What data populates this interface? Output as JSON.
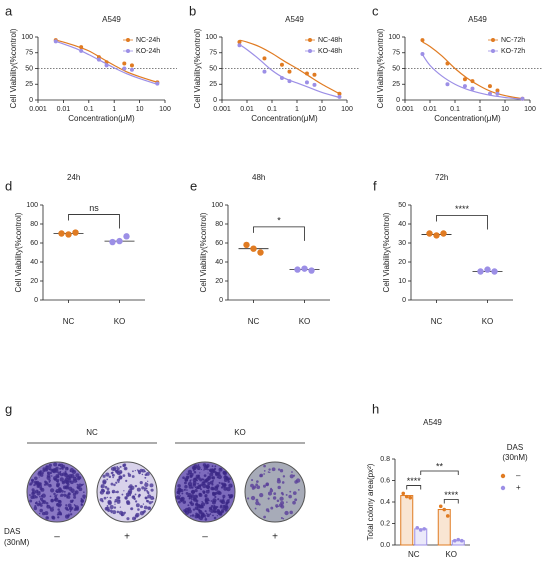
{
  "chart_data": [
    {
      "type": "scatter",
      "label": "a",
      "title": "A549",
      "xlabel": "Concentration(μM)",
      "ylabel": "Cell Viability(%control)",
      "xscale": "log",
      "xlim": [
        0.001,
        100
      ],
      "xticks": [
        0.001,
        0.01,
        0.1,
        1,
        10,
        100
      ],
      "ylim": [
        0,
        100
      ],
      "yticks": [
        0,
        25,
        50,
        75,
        100
      ],
      "reference_line": 50,
      "legend": "upper right",
      "x": [
        0.005,
        0.05,
        0.25,
        0.5,
        2.5,
        5,
        50
      ],
      "fit_x": [
        0.005,
        0.01,
        0.03,
        0.1,
        0.3,
        1,
        3,
        10,
        50
      ],
      "series": [
        {
          "name": "NC-24h",
          "color": "#e07b22",
          "values": [
            95,
            84,
            68,
            60,
            58,
            55,
            28
          ],
          "fit": [
            95,
            92,
            86,
            78,
            67,
            55,
            45,
            37,
            28
          ]
        },
        {
          "name": "KO-24h",
          "color": "#9c8fe6",
          "values": [
            93,
            78,
            64,
            55,
            50,
            48,
            26
          ],
          "fit": [
            93,
            89,
            82,
            72,
            62,
            51,
            42,
            34,
            25
          ]
        }
      ]
    },
    {
      "type": "scatter",
      "label": "b",
      "title": "A549",
      "xlabel": "Concentration(μM)",
      "ylabel": "Cell Viability(%control)",
      "xscale": "log",
      "xlim": [
        0.001,
        100
      ],
      "xticks": [
        0.001,
        0.01,
        0.1,
        1,
        10,
        100
      ],
      "ylim": [
        0,
        100
      ],
      "yticks": [
        0,
        25,
        50,
        75,
        100
      ],
      "reference_line": 50,
      "legend": "upper right",
      "x": [
        0.005,
        0.05,
        0.25,
        0.5,
        2.5,
        5,
        50
      ],
      "fit_x": [
        0.005,
        0.01,
        0.03,
        0.1,
        0.3,
        1,
        3,
        10,
        50
      ],
      "series": [
        {
          "name": "NC-48h",
          "color": "#e07b22",
          "values": [
            92,
            66,
            56,
            45,
            42,
            40,
            10
          ],
          "fit": [
            95,
            92,
            85,
            74,
            62,
            50,
            38,
            25,
            10
          ]
        },
        {
          "name": "KO-48h",
          "color": "#9c8fe6",
          "values": [
            87,
            45,
            35,
            30,
            28,
            24,
            5
          ],
          "fit": [
            88,
            80,
            65,
            47,
            35,
            27,
            20,
            12,
            4
          ]
        }
      ]
    },
    {
      "type": "scatter",
      "label": "c",
      "title": "A549",
      "xlabel": "Concentration(μM)",
      "ylabel": "Cell Viability(%control)",
      "xscale": "log",
      "xlim": [
        0.001,
        100
      ],
      "xticks": [
        0.001,
        0.01,
        0.1,
        1,
        10,
        100
      ],
      "ylim": [
        0,
        100
      ],
      "yticks": [
        0,
        25,
        50,
        75,
        100
      ],
      "reference_line": 50,
      "legend": "upper right",
      "x": [
        0.005,
        0.05,
        0.25,
        0.5,
        2.5,
        5,
        50
      ],
      "fit_x": [
        0.005,
        0.01,
        0.03,
        0.1,
        0.3,
        1,
        3,
        10,
        50
      ],
      "series": [
        {
          "name": "NC-72h",
          "color": "#e07b22",
          "values": [
            95,
            58,
            33,
            30,
            22,
            15,
            2
          ],
          "fit": [
            92,
            85,
            70,
            50,
            35,
            22,
            13,
            7,
            2
          ]
        },
        {
          "name": "KO-72h",
          "color": "#9c8fe6",
          "values": [
            73,
            25,
            22,
            18,
            10,
            10,
            2
          ],
          "fit": [
            72,
            55,
            38,
            25,
            17,
            11,
            7,
            4,
            1
          ]
        }
      ]
    },
    {
      "type": "dot",
      "label": "d",
      "title": "24h",
      "ylabel": "Cell Viability(%control)",
      "categories": [
        "NC",
        "KO"
      ],
      "colors": [
        "#e07b22",
        "#9c8fe6"
      ],
      "values": [
        70,
        62
      ],
      "points": [
        [
          70,
          69,
          71
        ],
        [
          61,
          62,
          67
        ]
      ],
      "ylim": [
        0,
        100
      ],
      "yticks": [
        0,
        20,
        40,
        60,
        80,
        100
      ],
      "annotation": "ns"
    },
    {
      "type": "dot",
      "label": "e",
      "title": "48h",
      "ylabel": "Cell Viability(%control)",
      "categories": [
        "NC",
        "KO"
      ],
      "colors": [
        "#e07b22",
        "#9c8fe6"
      ],
      "values": [
        54,
        32
      ],
      "points": [
        [
          58,
          54,
          50
        ],
        [
          32,
          33,
          31
        ]
      ],
      "ylim": [
        0,
        100
      ],
      "yticks": [
        0,
        20,
        40,
        60,
        80,
        100
      ],
      "annotation": "*"
    },
    {
      "type": "dot",
      "label": "f",
      "title": "72h",
      "ylabel": "Cell Viability(%control)",
      "categories": [
        "NC",
        "KO"
      ],
      "colors": [
        "#e07b22",
        "#9c8fe6"
      ],
      "values": [
        34.5,
        15
      ],
      "points": [
        [
          35,
          34,
          35
        ],
        [
          15,
          16,
          15
        ]
      ],
      "ylim": [
        0,
        50
      ],
      "yticks": [
        0,
        10,
        20,
        30,
        40,
        50
      ],
      "annotation": "****"
    },
    {
      "type": "bar",
      "label": "h",
      "title": "A549",
      "ylabel": "Total colony area(px²)",
      "categories": [
        "NC",
        "KO"
      ],
      "legend_title": [
        "DAS",
        "(30nM)"
      ],
      "series": [
        {
          "name": "–",
          "color": "#e07b22",
          "values": [
            0.46,
            0.33
          ],
          "points": [
            [
              0.48,
              0.45,
              0.44
            ],
            [
              0.36,
              0.33,
              0.27
            ]
          ]
        },
        {
          "name": "+",
          "color": "#9c8fe6",
          "values": [
            0.15,
            0.04
          ],
          "points": [
            [
              0.16,
              0.14,
              0.15
            ],
            [
              0.04,
              0.05,
              0.04
            ]
          ]
        }
      ],
      "ylim": [
        0,
        0.8
      ],
      "yticks": [
        {
          "value": 0,
          "label": "0.0"
        },
        0.2,
        0.4,
        0.6,
        0.8
      ],
      "annotations": [
        "****",
        "****",
        "**"
      ]
    }
  ],
  "panel_g": {
    "label": "g",
    "groups": [
      "NC",
      "KO"
    ],
    "row_label": [
      "DAS",
      "(30nM)"
    ],
    "signs": [
      "–",
      "+",
      "–",
      "+"
    ]
  }
}
